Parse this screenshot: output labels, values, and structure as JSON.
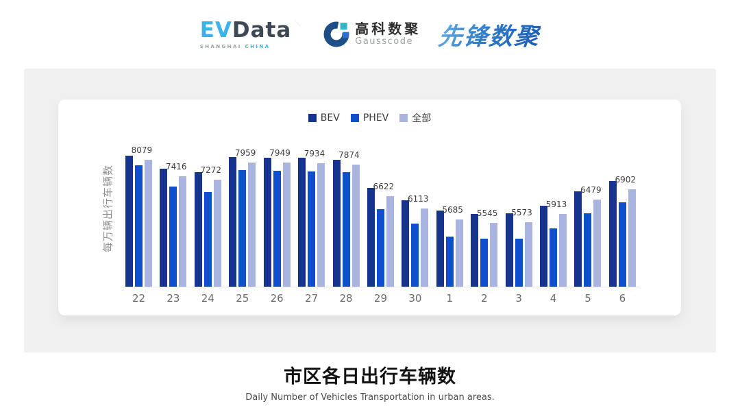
{
  "header": {
    "evdata": {
      "ev": "EV",
      "data": "Data",
      "sub1": "SHANGHAI",
      "sub2": "CHINA"
    },
    "gausscode": {
      "cn": "高科数聚",
      "en": "Gausscode"
    },
    "xianfeng": {
      "text": "先锋数聚"
    }
  },
  "icons": {
    "evdata_mark": "four-blade-star-icon",
    "gausscode_mark": "g-crescent-icon"
  },
  "colors": {
    "bev": "#16338e",
    "phev": "#0f4ecd",
    "all": "#a9b4e0",
    "panel_bg": "#f0f0f1",
    "card_bg": "#ffffff",
    "axis_line": "#e2e2e2"
  },
  "chart_data": {
    "type": "bar",
    "title": "市区各日出行车辆数",
    "subtitle": "Daily Number of Vehicles Transportation in urban areas.",
    "ylabel": "每万辆出行车辆数",
    "xlabel": "",
    "categories": [
      "22",
      "23",
      "24",
      "25",
      "26",
      "27",
      "28",
      "29",
      "30",
      "1",
      "2",
      "3",
      "4",
      "5",
      "6"
    ],
    "series": [
      {
        "key": "bev",
        "name": "BEV",
        "color": "#16338e",
        "values": [
          8230,
          7700,
          7580,
          8190,
          8160,
          8160,
          8060,
          6940,
          6450,
          6050,
          5890,
          5940,
          6230,
          6800,
          7230
        ],
        "labels": false
      },
      {
        "key": "phev",
        "name": "PHEV",
        "color": "#0f4ecd",
        "values": [
          7850,
          6990,
          6780,
          7670,
          7630,
          7600,
          7580,
          6100,
          5510,
          5010,
          4910,
          4910,
          5340,
          5920,
          6370
        ],
        "labels": false
      },
      {
        "key": "all",
        "name": "全部",
        "color": "#a9b4e0",
        "values": [
          8079,
          7416,
          7272,
          7959,
          7949,
          7934,
          7874,
          6622,
          6113,
          5685,
          5545,
          5573,
          5913,
          6479,
          6902
        ],
        "labels": true
      }
    ],
    "ylim": [
      3000,
      9300
    ],
    "grid": false,
    "legend_position": "top",
    "y_axis_ticks_visible": false
  },
  "footer": {
    "title": "市区各日出行车辆数",
    "subtitle": "Daily Number of Vehicles Transportation in urban areas."
  }
}
